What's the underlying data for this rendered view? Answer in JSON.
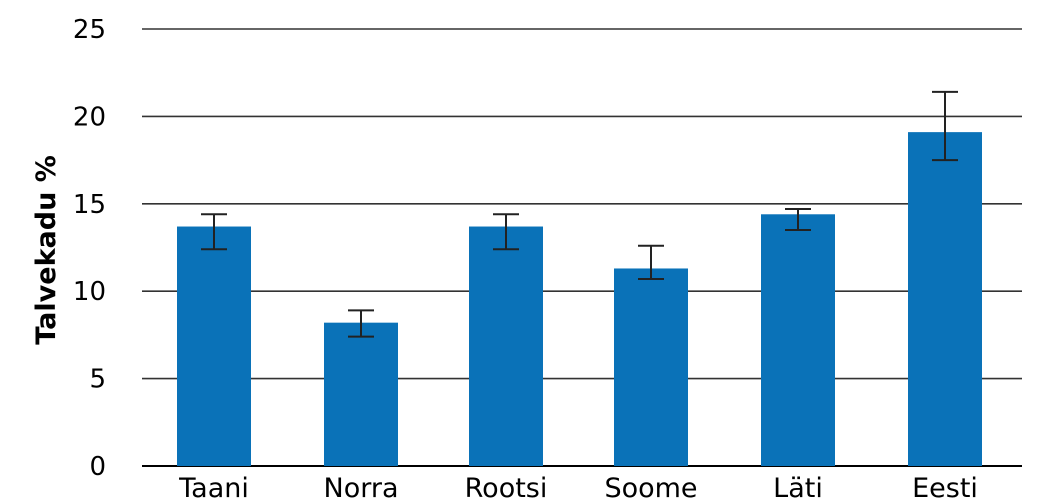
{
  "chart_data": {
    "type": "bar",
    "title": "",
    "xlabel": "",
    "ylabel": "Talvekadu %",
    "categories": [
      "Taani",
      "Norra",
      "Rootsi",
      "Soome",
      "Läti",
      "Eesti"
    ],
    "series": [
      {
        "values": [
          13.7,
          8.2,
          13.7,
          11.3,
          14.4,
          19.1
        ],
        "error_low": [
          12.4,
          7.4,
          12.4,
          10.7,
          13.5,
          17.5
        ],
        "error_high": [
          14.4,
          8.9,
          14.4,
          12.6,
          14.7,
          21.4
        ],
        "color": "#0a72b8"
      }
    ],
    "ylim": [
      0,
      25
    ],
    "yticks": [
      0,
      5,
      10,
      15,
      20,
      25
    ],
    "grid": true,
    "legend": "none"
  }
}
